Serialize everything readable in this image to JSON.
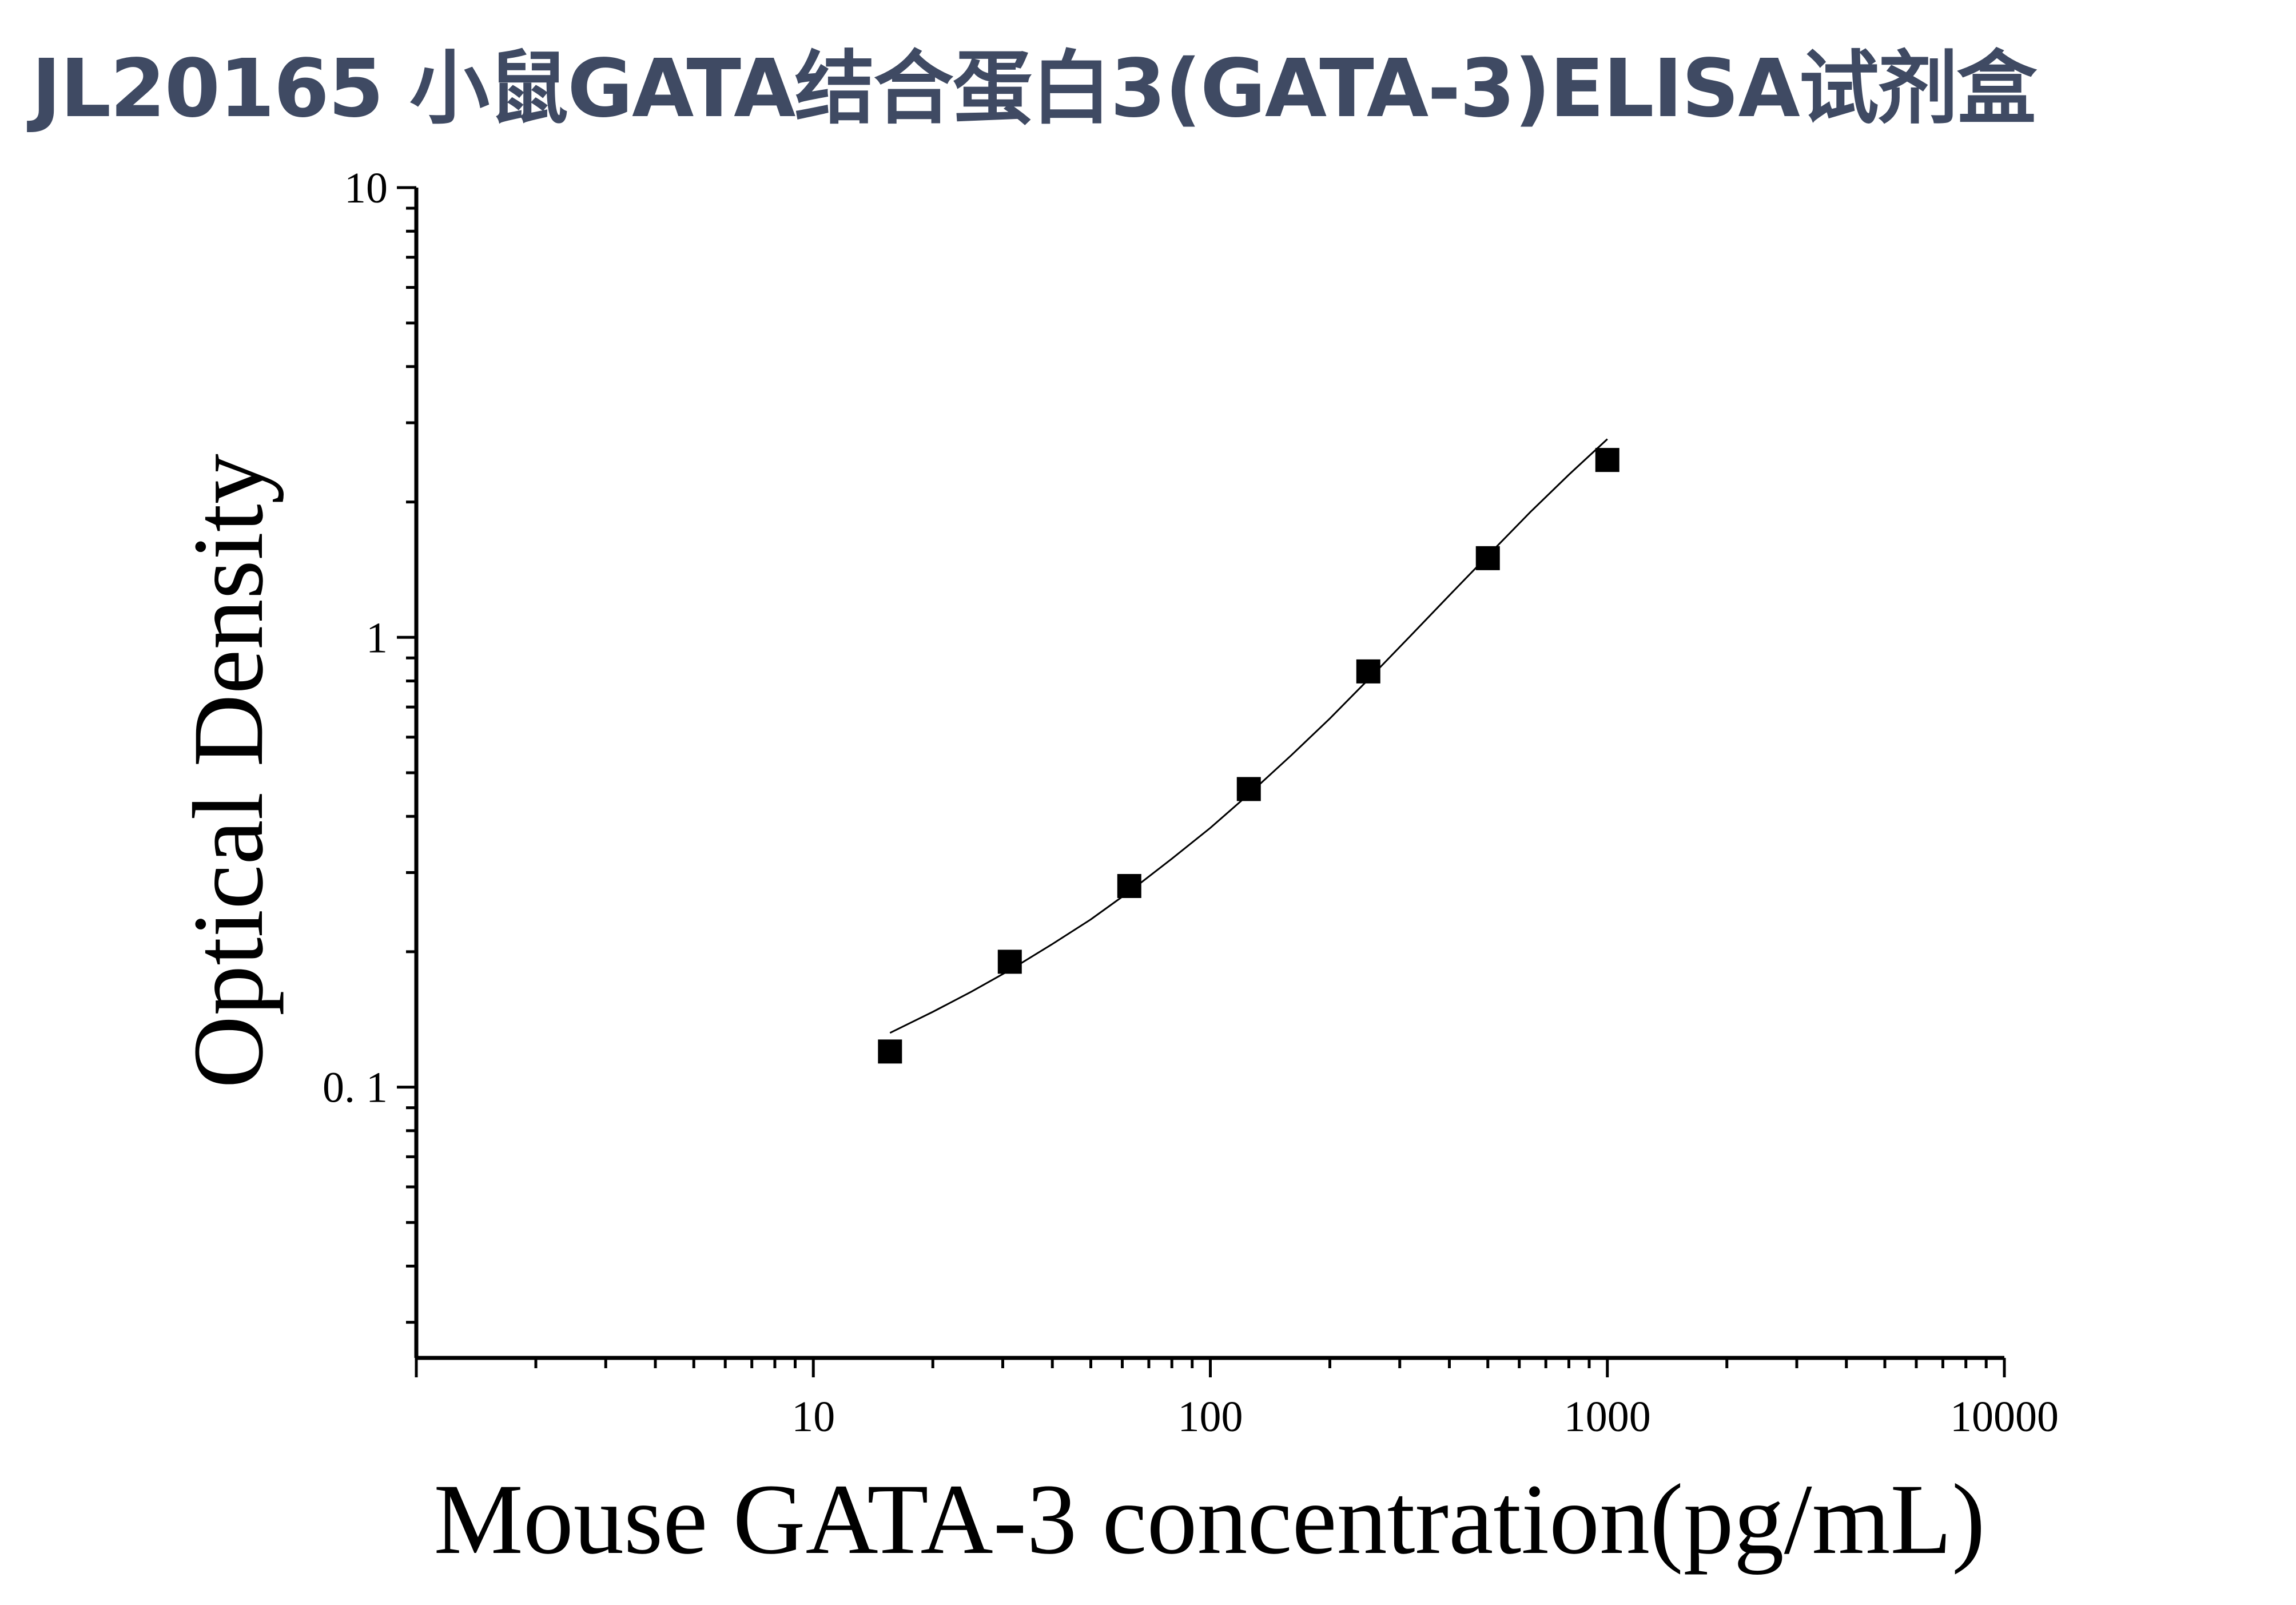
{
  "title": "JL20165 小鼠GATA结合蛋白3(GATA-3)ELISA试剂盒",
  "colors": {
    "title": "#3f4a63",
    "axis": "#000000",
    "marker": "#000000",
    "curve": "#000000"
  },
  "chart_data": {
    "type": "scatter",
    "title": "JL20165 小鼠GATA结合蛋白3(GATA-3)ELISA试剂盒",
    "xlabel": "Mouse GATA-3 concentration(pg/mL)",
    "ylabel": "Optical Density",
    "x_scale": "log",
    "y_scale": "log",
    "xlim": [
      1,
      10000
    ],
    "ylim": [
      0.025,
      10
    ],
    "x_ticks": [
      {
        "value": 10,
        "label": "10"
      },
      {
        "value": 100,
        "label": "100"
      },
      {
        "value": 1000,
        "label": "1000"
      },
      {
        "value": 10000,
        "label": "10000"
      }
    ],
    "y_ticks": [
      {
        "value": 0.1,
        "label": "0. 1"
      },
      {
        "value": 1,
        "label": "1"
      },
      {
        "value": 10,
        "label": "10"
      }
    ],
    "grid": false,
    "legend": "none",
    "marker": "square",
    "series": [
      {
        "x": [
          15.6,
          31.25,
          62.5,
          125,
          250,
          500,
          1000
        ],
        "y": [
          0.12,
          0.19,
          0.28,
          0.46,
          0.84,
          1.5,
          2.48
        ]
      }
    ],
    "fit_curve": {
      "x": [
        15.6,
        20,
        25,
        31.25,
        40,
        50,
        62.5,
        80,
        100,
        125,
        160,
        200,
        250,
        320,
        400,
        500,
        640,
        800,
        1000
      ],
      "y": [
        0.132,
        0.147,
        0.163,
        0.182,
        0.208,
        0.236,
        0.272,
        0.322,
        0.377,
        0.448,
        0.547,
        0.66,
        0.806,
        1.01,
        1.24,
        1.52,
        1.9,
        2.3,
        2.76
      ]
    }
  }
}
